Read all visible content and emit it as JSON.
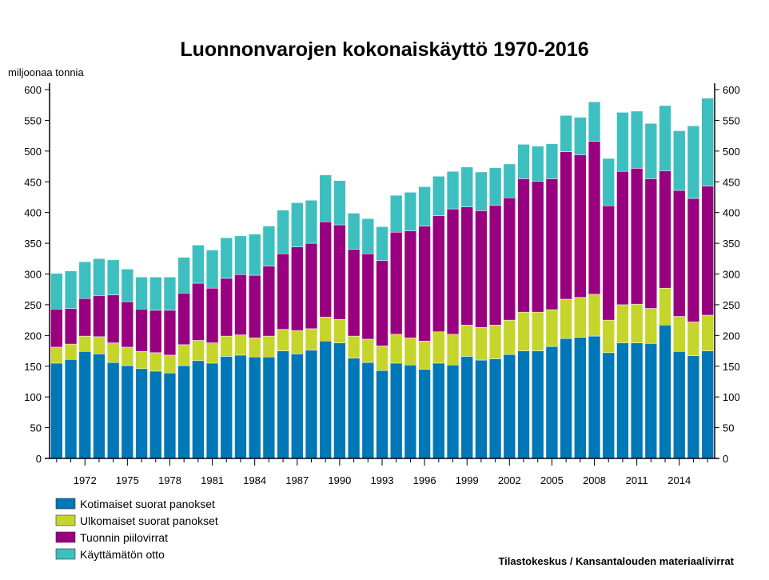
{
  "chart_data": {
    "type": "bar",
    "stacked": true,
    "title": "Luonnonvarojen kokonaiskäyttö 1970-2016",
    "ylabel": "miljoonaa tonnia",
    "ylim": [
      0,
      600
    ],
    "yticks": [
      0,
      50,
      100,
      150,
      200,
      250,
      300,
      350,
      400,
      450,
      500,
      550,
      600
    ],
    "right_axis": true,
    "categories": [
      1970,
      1971,
      1972,
      1973,
      1974,
      1975,
      1976,
      1977,
      1978,
      1979,
      1980,
      1981,
      1982,
      1983,
      1984,
      1985,
      1986,
      1987,
      1988,
      1989,
      1990,
      1991,
      1992,
      1993,
      1994,
      1995,
      1996,
      1997,
      1998,
      1999,
      2000,
      2001,
      2002,
      2003,
      2004,
      2005,
      2006,
      2007,
      2008,
      2009,
      2010,
      2011,
      2012,
      2013,
      2014,
      2015,
      2016
    ],
    "xtick_labels": [
      "1972",
      "1975",
      "1978",
      "1981",
      "1984",
      "1987",
      "1990",
      "1993",
      "1996",
      "1999",
      "2002",
      "2005",
      "2008",
      "2011",
      "2014"
    ],
    "series": [
      {
        "name": "Kotimaiset suorat panokset",
        "color": "#0077b6",
        "values": [
          155,
          161,
          174,
          170,
          156,
          151,
          146,
          142,
          139,
          151,
          159,
          155,
          166,
          168,
          165,
          165,
          175,
          170,
          176,
          191,
          188,
          163,
          156,
          143,
          155,
          152,
          145,
          155,
          152,
          166,
          160,
          162,
          169,
          175,
          175,
          182,
          195,
          197,
          199,
          172,
          188,
          188,
          187,
          217,
          174,
          167,
          175
        ]
      },
      {
        "name": "Ulkomaiset suorat panokset",
        "color": "#c5d52b",
        "values": [
          26,
          25,
          25,
          28,
          32,
          30,
          28,
          30,
          29,
          34,
          33,
          33,
          33,
          33,
          31,
          34,
          35,
          38,
          35,
          39,
          38,
          36,
          38,
          40,
          47,
          44,
          46,
          51,
          50,
          51,
          53,
          55,
          56,
          63,
          63,
          60,
          64,
          65,
          68,
          53,
          62,
          63,
          57,
          60,
          57,
          55,
          58
        ]
      },
      {
        "name": "Tuonnin piilovirrat",
        "color": "#990080",
        "values": [
          62,
          58,
          61,
          67,
          78,
          74,
          69,
          69,
          73,
          84,
          93,
          89,
          94,
          98,
          102,
          114,
          123,
          136,
          139,
          155,
          154,
          141,
          139,
          139,
          166,
          174,
          187,
          189,
          204,
          192,
          190,
          195,
          199,
          217,
          213,
          213,
          240,
          232,
          249,
          186,
          217,
          221,
          211,
          191,
          205,
          201,
          210
        ]
      },
      {
        "name": "Käyttämätön otto",
        "color": "#3dbfbf",
        "values": [
          58,
          61,
          60,
          60,
          57,
          53,
          52,
          54,
          54,
          58,
          62,
          62,
          66,
          63,
          67,
          65,
          71,
          72,
          70,
          76,
          72,
          59,
          57,
          55,
          60,
          63,
          64,
          64,
          61,
          65,
          63,
          61,
          55,
          56,
          57,
          57,
          59,
          61,
          64,
          77,
          96,
          93,
          90,
          106,
          97,
          118,
          143
        ]
      }
    ],
    "legend_position": "bottom-left",
    "grid": false
  },
  "source": "Tilastokeskus / Kansantalouden materiaalivirrat"
}
